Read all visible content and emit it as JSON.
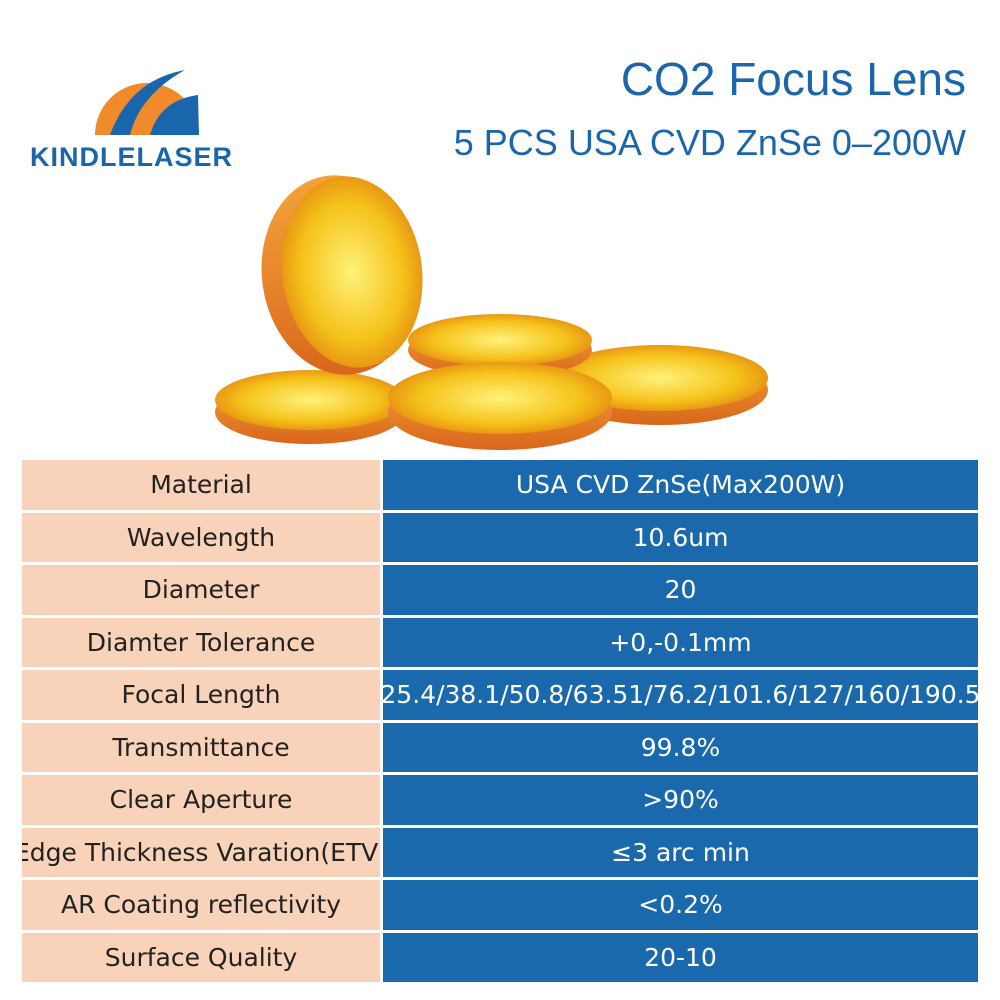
{
  "header": {
    "logo": "KINDLELASER",
    "title": "CO2 Focus Lens",
    "subtitle": "5 PCS USA CVD ZnSe 0–200W"
  },
  "table": {
    "rows": [
      [
        "Material",
        "USA CVD ZnSe(Max200W)"
      ],
      [
        "Wavelength",
        "10.6um"
      ],
      [
        "Diameter",
        "20"
      ],
      [
        "Diamter Tolerance",
        "+0,-0.1mm"
      ],
      [
        "Focal Length",
        "25.4/38.1/50.8/63.51/76.2/101.6/127/160/190.5"
      ],
      [
        "Transmittance",
        "99.8%"
      ],
      [
        "Clear Aperture",
        ">90%"
      ],
      [
        "Edge Thickness Varation(ETV)",
        "≤3 arc min"
      ],
      [
        "AR Coating reflectivity",
        "<0.2%"
      ],
      [
        "Surface Quality",
        "20-10"
      ]
    ]
  }
}
